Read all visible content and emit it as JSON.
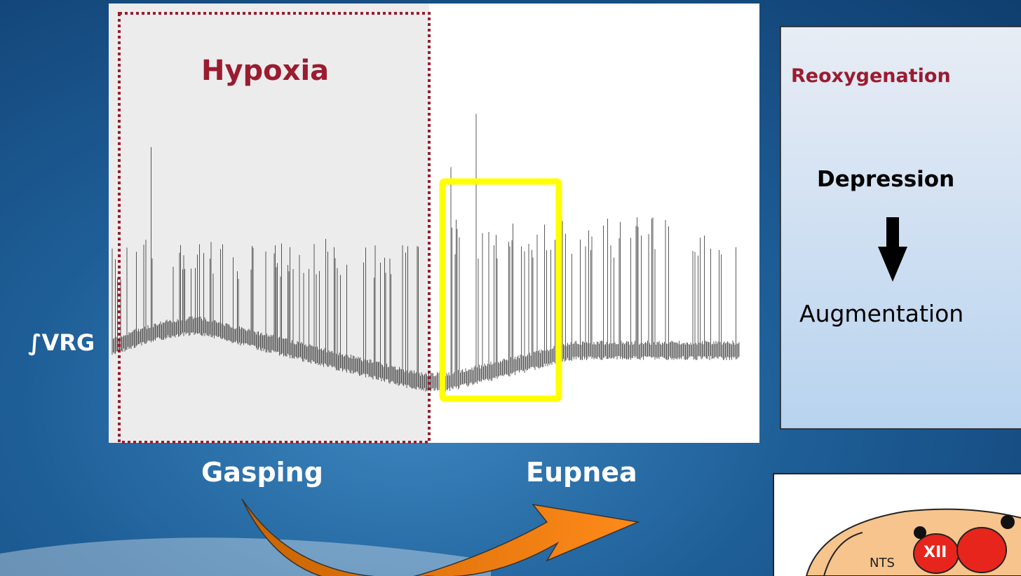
{
  "trace": {
    "hypoxia_label": "Hypoxia",
    "signal_label": "∫VRG",
    "left_phase": "Gasping",
    "right_phase": "Eupnea"
  },
  "reoxygenation_box": {
    "title": "Reoxygenation",
    "from": "Depression",
    "to": "Augmentation"
  },
  "brain_diagram": {
    "labels": [
      "XII",
      "NTS"
    ]
  }
}
